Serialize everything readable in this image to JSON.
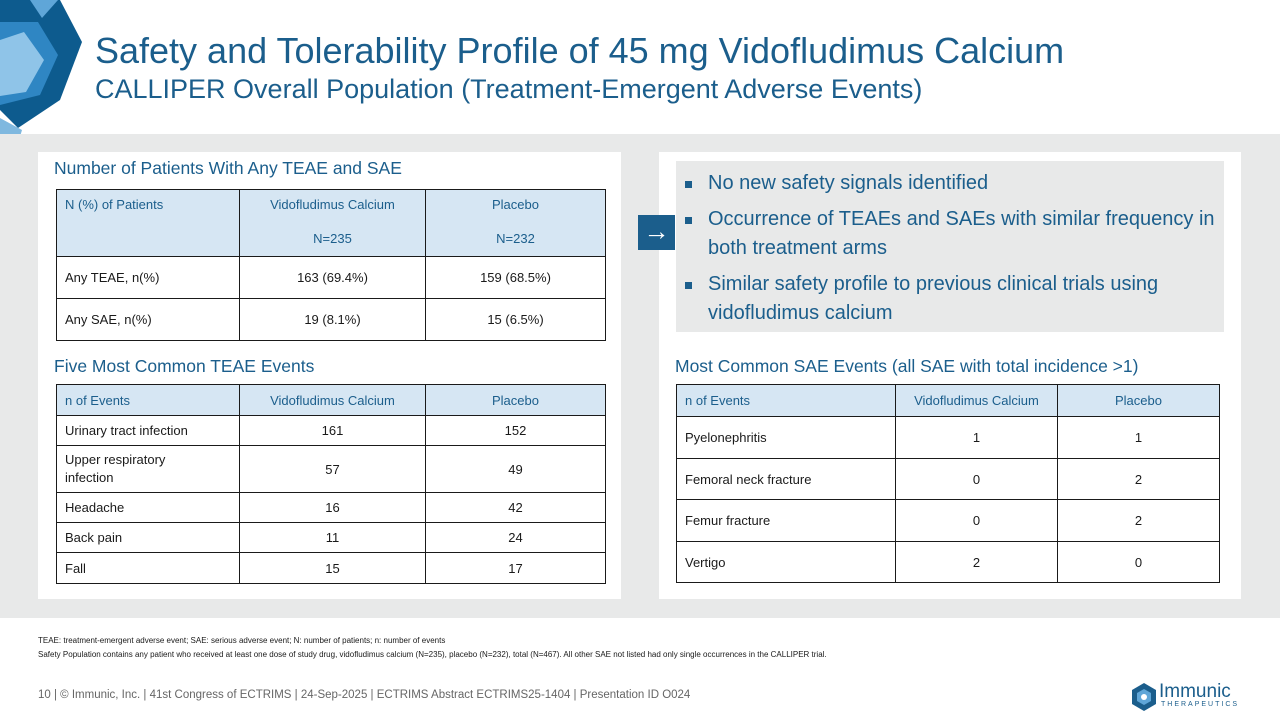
{
  "header": {
    "title": "Safety and Tolerability Profile of 45 mg Vidofludimus Calcium",
    "subtitle": "CALLIPER Overall Population (Treatment-Emergent Adverse Events)"
  },
  "teae_sae": {
    "heading": "Number of Patients With Any TEAE and SAE",
    "col0": "N (%) of Patients",
    "col1": "Vidofludimus Calcium",
    "col1_n": "N=235",
    "col2": "Placebo",
    "col2_n": "N=232",
    "rows": [
      {
        "label": "Any TEAE, n(%)",
        "v": "163 (69.4%)",
        "p": "159 (68.5%)"
      },
      {
        "label": "Any SAE, n(%)",
        "v": "19 (8.1%)",
        "p": "15 (6.5%)"
      }
    ]
  },
  "common_teae": {
    "heading": "Five Most Common TEAE Events",
    "col0": "n of Events",
    "col1": "Vidofludimus Calcium",
    "col2": "Placebo",
    "rows": [
      {
        "label": "Urinary tract infection",
        "v": "161",
        "p": "152"
      },
      {
        "label": "Upper respiratory infection",
        "v": "57",
        "p": "49"
      },
      {
        "label": "Headache",
        "v": "16",
        "p": "42"
      },
      {
        "label": "Back pain",
        "v": "11",
        "p": "24"
      },
      {
        "label": "Fall",
        "v": "15",
        "p": "17"
      }
    ]
  },
  "summary": {
    "arrow": "→",
    "bullets": [
      "No new safety signals identified",
      "Occurrence of TEAEs and SAEs with similar frequency in both treatment arms",
      "Similar safety profile to previous clinical trials using vidofludimus calcium"
    ]
  },
  "common_sae": {
    "heading": "Most Common SAE Events (all SAE with total incidence >1)",
    "col0": "n of Events",
    "col1": "Vidofludimus Calcium",
    "col2": "Placebo",
    "rows": [
      {
        "label": "Pyelonephritis",
        "v": "1",
        "p": "1"
      },
      {
        "label": "Femoral neck fracture",
        "v": "0",
        "p": "2"
      },
      {
        "label": "Femur fracture",
        "v": "0",
        "p": "2"
      },
      {
        "label": "Vertigo",
        "v": "2",
        "p": "0"
      }
    ]
  },
  "footnotes": {
    "line1": "TEAE: treatment-emergent adverse event; SAE: serious adverse event; N: number of patients; n: number of events",
    "line2": "Safety Population contains any patient who received at least one dose of study drug, vidofludimus calcium (N=235), placebo (N=232), total (N=467). All other SAE not listed had only single occurrences in the CALLIPER trial."
  },
  "footer": {
    "text": "10  |  © Immunic, Inc. | 41st Congress of ECTRIMS | 24-Sep-2025 | ECTRIMS Abstract ECTRIMS25-1404 | Presentation ID O024"
  },
  "logo": {
    "name": "Immunic",
    "sub": "THERAPEUTICS"
  },
  "colors": {
    "accent": "#1b5e8c",
    "header_fill": "#d6e6f3",
    "band": "#e8e9e9"
  }
}
